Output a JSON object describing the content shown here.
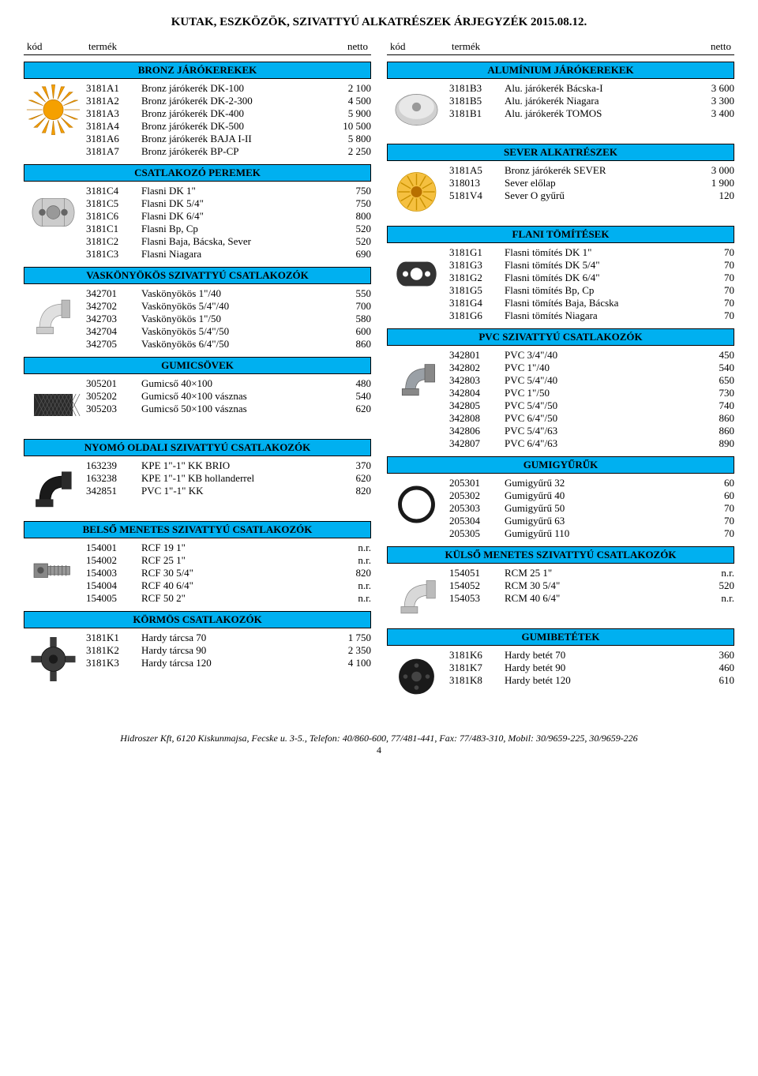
{
  "title": "KUTAK, ESZKÖZÖK, SZIVATTYÚ ALKATRÉSZEK ÁRJEGYZÉK 2015.08.12.",
  "headers": {
    "code": "kód",
    "product": "termék",
    "net": "netto"
  },
  "left": [
    {
      "type": "section",
      "label": "BRONZ JÁRÓKEREKEK"
    },
    {
      "type": "group",
      "icon": "sun",
      "rows": [
        [
          "3181A1",
          "Bronz járókerék DK-100",
          "2 100"
        ],
        [
          "3181A2",
          "Bronz járókerék DK-2-300",
          "4 500"
        ],
        [
          "3181A3",
          "Bronz járókerék DK-400",
          "5 900"
        ],
        [
          "3181A4",
          "Bronz járókerék DK-500",
          "10 500"
        ],
        [
          "3181A6",
          "Bronz járókerék BAJA I-II",
          "5 800"
        ],
        [
          "3181A7",
          "Bronz járókerék BP-CP",
          "2 250"
        ]
      ]
    },
    {
      "type": "section",
      "label": "CSATLAKOZÓ PEREMEK"
    },
    {
      "type": "group",
      "icon": "flange",
      "rows": [
        [
          "3181C4",
          "Flasni DK 1\"",
          "750"
        ],
        [
          "3181C5",
          "Flasni DK 5/4\"",
          "750"
        ],
        [
          "3181C6",
          "Flasni DK 6/4\"",
          "800"
        ],
        [
          "3181C1",
          "Flasni Bp, Cp",
          "520"
        ],
        [
          "3181C2",
          "Flasni Baja, Bácska, Sever",
          "520"
        ],
        [
          "3181C3",
          "Flasni Niagara",
          "690"
        ]
      ]
    },
    {
      "type": "section",
      "label": "VASKÖNYÖKÖS SZIVATTYÚ CSATLAKOZÓK"
    },
    {
      "type": "group",
      "icon": "elbow-metal",
      "rows": [
        [
          "342701",
          "Vaskönyökös 1\"/40",
          "550"
        ],
        [
          "342702",
          "Vaskönyökös 5/4\"/40",
          "700"
        ],
        [
          "342703",
          "Vaskönyökös 1\"/50",
          "580"
        ],
        [
          "342704",
          "Vaskönyökös 5/4\"/50",
          "600"
        ],
        [
          "342705",
          "Vaskönyökös 6/4\"/50",
          "860"
        ]
      ]
    },
    {
      "type": "section",
      "label": "GUMICSÖVEK"
    },
    {
      "type": "group",
      "icon": "hose",
      "rows": [
        [
          "305201",
          "Gumicső 40×100",
          "480"
        ],
        [
          "305202",
          "Gumicső 40×100 vásznas",
          "540"
        ],
        [
          "305203",
          "Gumicső 50×100 vásznas",
          "620"
        ]
      ]
    },
    {
      "type": "section",
      "label": "NYOMÓ OLDALI SZIVATTYÚ CSATLAKOZÓK"
    },
    {
      "type": "group",
      "icon": "elbow-black",
      "rows": [
        [
          "163239",
          "KPE 1\"-1\" KK BRIO",
          "370"
        ],
        [
          "163238",
          "KPE 1\"-1\" KB hollanderrel",
          "620"
        ],
        [
          "342851",
          "PVC 1\"-1\" KK",
          "820"
        ]
      ]
    },
    {
      "type": "section",
      "label": "BELSŐ MENETES SZIVATTYÚ CSATLAKOZÓK"
    },
    {
      "type": "group",
      "icon": "barb",
      "rows": [
        [
          "154001",
          "RCF 19 1\"",
          "n.r."
        ],
        [
          "154002",
          "RCF 25 1\"",
          "n.r."
        ],
        [
          "154003",
          "RCF 30 5/4\"",
          "820"
        ],
        [
          "154004",
          "RCF 40 6/4\"",
          "n.r."
        ],
        [
          "154005",
          "RCF 50 2\"",
          "n.r."
        ]
      ]
    },
    {
      "type": "section",
      "label": "KÖRMÖS CSATLAKOZÓK"
    },
    {
      "type": "group",
      "icon": "claw",
      "rows": [
        [
          "3181K1",
          "Hardy tárcsa 70",
          "1 750"
        ],
        [
          "3181K2",
          "Hardy tárcsa 90",
          "2 350"
        ],
        [
          "3181K3",
          "Hardy tárcsa 120",
          "4 100"
        ]
      ]
    }
  ],
  "right": [
    {
      "type": "section",
      "label": "ALUMÍNIUM JÁRÓKEREKEK"
    },
    {
      "type": "group",
      "icon": "disc",
      "rows": [
        [
          "3181B3",
          "Alu. járókerék Bácska-I",
          "3 600"
        ],
        [
          "3181B5",
          "Alu. járókerék Niagara",
          "3 300"
        ],
        [
          "3181B1",
          "Alu. járókerék TOMOS",
          "3 400"
        ]
      ]
    },
    {
      "type": "section",
      "label": "SEVER ALKATRÉSZEK"
    },
    {
      "type": "group",
      "icon": "gold-disc",
      "rows": [
        [
          "3181A5",
          "Bronz járókerék SEVER",
          "3 000"
        ],
        [
          "318013",
          "Sever előlap",
          "1 900"
        ],
        [
          "5181V4",
          "Sever O gyűrű",
          "120"
        ]
      ]
    },
    {
      "type": "section",
      "label": "FLANI TÖMÍTÉSEK"
    },
    {
      "type": "group",
      "icon": "gasket",
      "rows": [
        [
          "3181G1",
          "Flasni tömítés DK 1\"",
          "70"
        ],
        [
          "3181G3",
          "Flasni tömítés DK 5/4\"",
          "70"
        ],
        [
          "3181G2",
          "Flasni tömítés DK 6/4\"",
          "70"
        ],
        [
          "3181G5",
          "Flasni tömítés Bp, Cp",
          "70"
        ],
        [
          "3181G4",
          "Flasni tömítés Baja, Bácska",
          "70"
        ],
        [
          "3181G6",
          "Flasni tömítés Niagara",
          "70"
        ]
      ]
    },
    {
      "type": "section",
      "label": "PVC SZIVATTYÚ CSATLAKOZÓK"
    },
    {
      "type": "group",
      "icon": "elbow-pvc",
      "rows": [
        [
          "342801",
          "PVC 3/4\"/40",
          "450"
        ],
        [
          "342802",
          "PVC 1\"/40",
          "540"
        ],
        [
          "342803",
          "PVC 5/4\"/40",
          "650"
        ],
        [
          "342804",
          "PVC 1\"/50",
          "730"
        ],
        [
          "342805",
          "PVC 5/4\"/50",
          "740"
        ],
        [
          "342808",
          "PVC 6/4\"/50",
          "860"
        ],
        [
          "342806",
          "PVC 5/4\"/63",
          "860"
        ],
        [
          "342807",
          "PVC 6/4\"/63",
          "890"
        ]
      ]
    },
    {
      "type": "section",
      "label": "GUMIGYŰRŰK"
    },
    {
      "type": "group",
      "icon": "oring",
      "rows": [
        [
          "205301",
          "Gumigyűrű 32",
          "60"
        ],
        [
          "205302",
          "Gumigyűrű 40",
          "60"
        ],
        [
          "205303",
          "Gumigyűrű 50",
          "70"
        ],
        [
          "205304",
          "Gumigyűrű 63",
          "70"
        ],
        [
          "205305",
          "Gumigyűrű 110",
          "70"
        ]
      ]
    },
    {
      "type": "section",
      "label": "KÜLSŐ MENETES SZIVATTYÚ CSATLAKOZÓK"
    },
    {
      "type": "group",
      "icon": "elbow-metal2",
      "rows": [
        [
          "154051",
          "RCM 25 1\"",
          "n.r."
        ],
        [
          "154052",
          "RCM 30 5/4\"",
          "520"
        ],
        [
          "154053",
          "RCM 40 6/4\"",
          "n.r."
        ]
      ]
    },
    {
      "type": "section",
      "label": "GUMIBETÉTEK"
    },
    {
      "type": "group",
      "icon": "rubber-disc",
      "rows": [
        [
          "3181K6",
          "Hardy betét 70",
          "360"
        ],
        [
          "3181K7",
          "Hardy betét 90",
          "460"
        ],
        [
          "3181K8",
          "Hardy betét 120",
          "610"
        ]
      ]
    }
  ],
  "footer_line1": "Hidroszer Kft, 6120 Kiskunmajsa, Fecske u. 3-5., Telefon: 40/860-600, 77/481-441, Fax: 77/483-310, Mobil: 30/9659-225, 30/9659-226",
  "page_number": "4",
  "icons": {
    "sun": "gold-sun",
    "disc": "silver-disc",
    "gold-disc": "gold-sun-small",
    "flange": "flange-shape",
    "gasket": "gasket-shape",
    "elbow-metal": "elbow-silver",
    "elbow-pvc": "elbow-grey",
    "hose": "mesh",
    "elbow-black": "elbow-dark",
    "barb": "barb-grey",
    "claw": "claw-dark",
    "oring": "ring",
    "elbow-metal2": "elbow-silver",
    "rubber-disc": "black-disc"
  },
  "colors": {
    "header_bg": "#00b0f0",
    "text": "#000000"
  }
}
